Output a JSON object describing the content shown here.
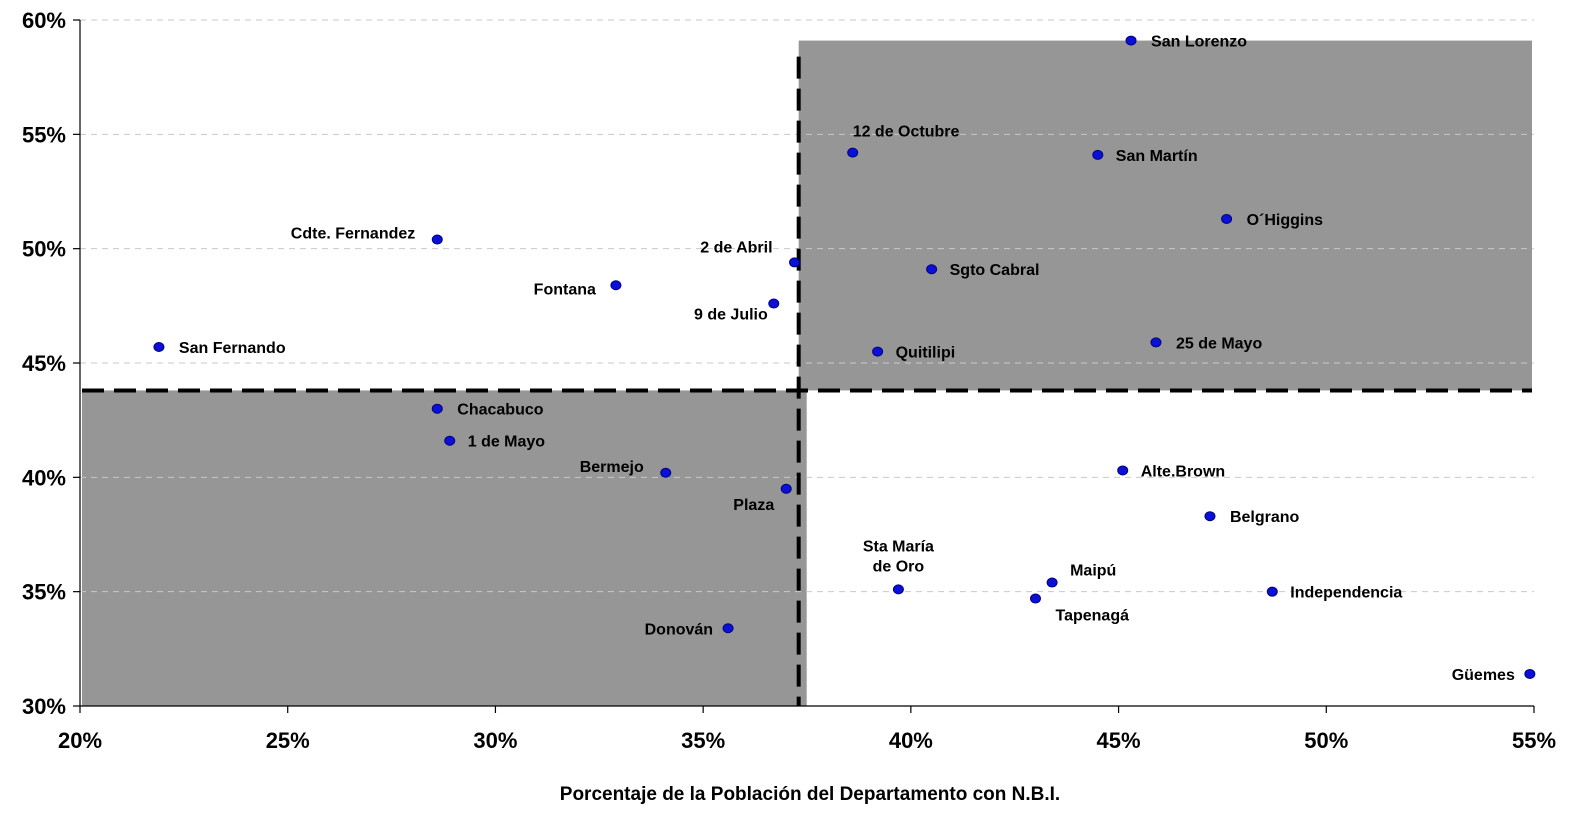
{
  "chart_data": {
    "type": "scatter",
    "title": "",
    "xlabel": "Porcentaje de la Población del Departamento con N.B.I.",
    "ylabel": "",
    "xlim": [
      20,
      55
    ],
    "ylim": [
      30,
      60
    ],
    "x_ticks": [
      20,
      25,
      30,
      35,
      40,
      45,
      50,
      55
    ],
    "y_ticks": [
      30,
      35,
      40,
      45,
      50,
      55,
      60
    ],
    "x_tick_labels": [
      "20%",
      "25%",
      "30%",
      "35%",
      "40%",
      "45%",
      "50%",
      "55%"
    ],
    "y_tick_labels": [
      "30%",
      "35%",
      "40%",
      "45%",
      "50%",
      "55%",
      "60%"
    ],
    "grid": true,
    "thresholds": {
      "x": 37.3,
      "y": 43.8
    },
    "shaded_quadrants": [
      "top-right",
      "bottom-left"
    ],
    "colors": {
      "point": "#0a10d8",
      "shade": "#969696"
    },
    "points": [
      {
        "name": "San Lorenzo",
        "x": 45.3,
        "y": 59.1
      },
      {
        "name": "12 de Octubre",
        "x": 38.6,
        "y": 54.2
      },
      {
        "name": "San Martín",
        "x": 44.5,
        "y": 54.1
      },
      {
        "name": "O´Higgins",
        "x": 47.6,
        "y": 51.3
      },
      {
        "name": "Cdte. Fernandez",
        "x": 28.6,
        "y": 50.4
      },
      {
        "name": "2 de Abril",
        "x": 37.2,
        "y": 49.4
      },
      {
        "name": "Sgto Cabral",
        "x": 40.5,
        "y": 49.1
      },
      {
        "name": "Fontana",
        "x": 32.9,
        "y": 48.4
      },
      {
        "name": "9 de Julio",
        "x": 36.7,
        "y": 47.6
      },
      {
        "name": "San Fernando",
        "x": 21.9,
        "y": 45.7
      },
      {
        "name": "Quitilipi",
        "x": 39.2,
        "y": 45.5
      },
      {
        "name": "25 de Mayo",
        "x": 45.9,
        "y": 45.9
      },
      {
        "name": "Chacabuco",
        "x": 28.6,
        "y": 43.0
      },
      {
        "name": "1 de Mayo",
        "x": 28.9,
        "y": 41.6
      },
      {
        "name": "Bermejo",
        "x": 34.1,
        "y": 40.2
      },
      {
        "name": "Alte.Brown",
        "x": 45.1,
        "y": 40.3
      },
      {
        "name": "Plaza",
        "x": 37.0,
        "y": 39.5
      },
      {
        "name": "Belgrano",
        "x": 47.2,
        "y": 38.3
      },
      {
        "name": "Sta María de Oro",
        "x": 39.7,
        "y": 35.1
      },
      {
        "name": "Maipú",
        "x": 43.4,
        "y": 35.4
      },
      {
        "name": "Tapenagá",
        "x": 43.0,
        "y": 34.7
      },
      {
        "name": "Independencia",
        "x": 48.7,
        "y": 35.0
      },
      {
        "name": "Donován",
        "x": 35.6,
        "y": 33.4
      },
      {
        "name": "Güemes",
        "x": 54.9,
        "y": 31.4
      }
    ]
  }
}
